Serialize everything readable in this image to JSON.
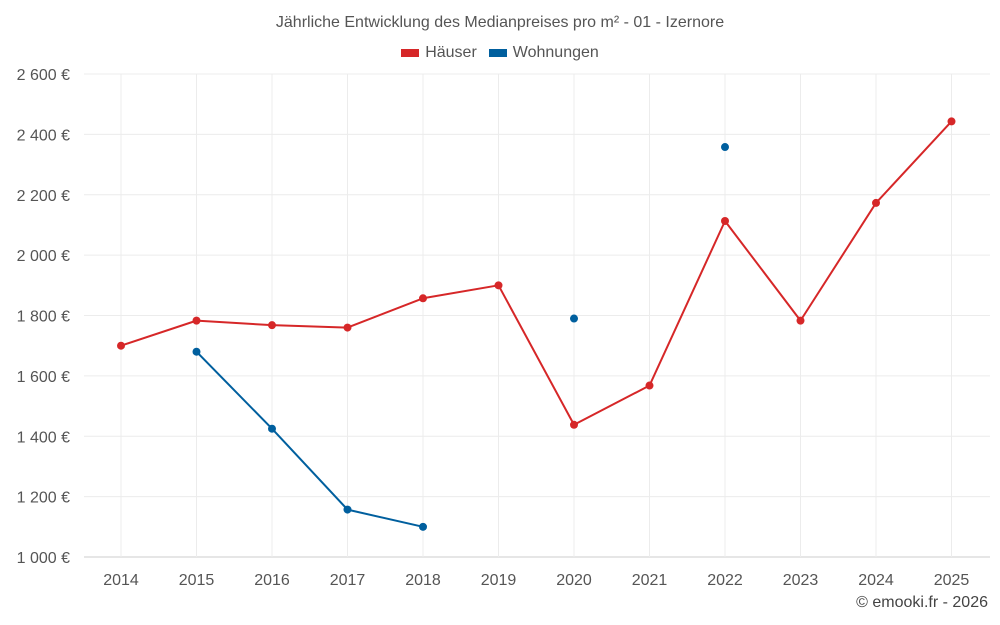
{
  "chart_data": {
    "type": "line",
    "title": "Jährliche Entwicklung des Medianpreises pro m² - 01 - Izernore",
    "categories": [
      "2014",
      "2015",
      "2016",
      "2017",
      "2018",
      "2019",
      "2020",
      "2021",
      "2022",
      "2023",
      "2024",
      "2025"
    ],
    "series": [
      {
        "name": "Häuser",
        "color": "#d62728",
        "values": [
          1700,
          1783,
          1768,
          1760,
          1857,
          1900,
          1438,
          1568,
          2113,
          1783,
          2173,
          2443
        ]
      },
      {
        "name": "Wohnungen",
        "color": "#005f9e",
        "values": [
          null,
          1680,
          1425,
          1157,
          1100,
          null,
          1790,
          null,
          2358,
          null,
          null,
          null
        ]
      }
    ],
    "y_ticks": [
      {
        "value": 1000,
        "label": "1 000 €"
      },
      {
        "value": 1200,
        "label": "1 200 €"
      },
      {
        "value": 1400,
        "label": "1 400 €"
      },
      {
        "value": 1600,
        "label": "1 600 €"
      },
      {
        "value": 1800,
        "label": "1 800 €"
      },
      {
        "value": 2000,
        "label": "2 000 €"
      },
      {
        "value": 2200,
        "label": "2 200 €"
      },
      {
        "value": 2400,
        "label": "2 400 €"
      },
      {
        "value": 2600,
        "label": "2 600 €"
      }
    ],
    "ylim": [
      1000,
      2600
    ],
    "xlabel": "",
    "ylabel": "",
    "grid": true,
    "legend_position": "top-center"
  },
  "credit": "© emooki.fr - 2026"
}
